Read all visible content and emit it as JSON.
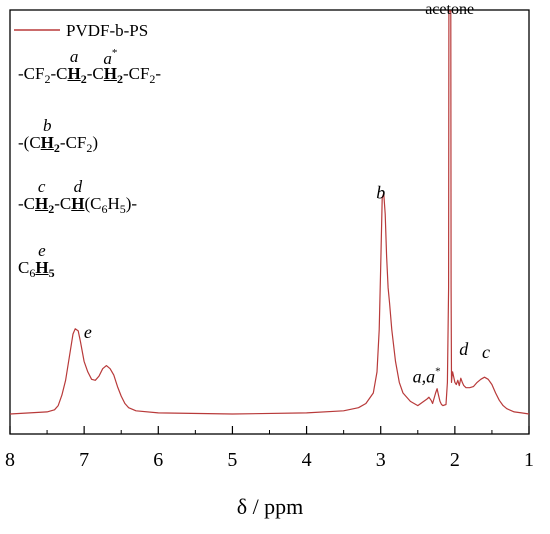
{
  "chart_data": {
    "type": "line",
    "xlabel": "δ / ppm",
    "xlim": [
      8,
      1
    ],
    "x_reversed": true,
    "xticks": [
      "8",
      "7",
      "6",
      "5",
      "4",
      "3",
      "2",
      "1"
    ],
    "grid": false,
    "legend_position": "top-left",
    "colors": {
      "series": "#b83a3a",
      "axes": "#000000"
    },
    "series": [
      {
        "name": "PVDF-b-PS",
        "x": [
          8.0,
          7.5,
          7.4,
          7.35,
          7.3,
          7.25,
          7.2,
          7.15,
          7.12,
          7.08,
          7.05,
          7.0,
          6.95,
          6.9,
          6.85,
          6.8,
          6.75,
          6.7,
          6.65,
          6.6,
          6.55,
          6.5,
          6.45,
          6.4,
          6.3,
          6.0,
          5.0,
          4.0,
          3.5,
          3.3,
          3.2,
          3.1,
          3.05,
          3.02,
          3.0,
          2.98,
          2.96,
          2.94,
          2.92,
          2.9,
          2.88,
          2.85,
          2.8,
          2.75,
          2.7,
          2.6,
          2.5,
          2.42,
          2.38,
          2.35,
          2.32,
          2.3,
          2.26,
          2.24,
          2.22,
          2.2,
          2.18,
          2.16,
          2.12,
          2.1,
          2.085,
          2.08,
          2.075,
          2.07,
          2.065,
          2.06,
          2.055,
          2.05,
          2.045,
          2.04,
          2.03,
          2.0,
          1.98,
          1.96,
          1.94,
          1.92,
          1.9,
          1.88,
          1.85,
          1.8,
          1.75,
          1.7,
          1.65,
          1.6,
          1.55,
          1.5,
          1.45,
          1.4,
          1.35,
          1.3,
          1.2,
          1.1,
          1.0
        ],
        "y": [
          0,
          0.2,
          0.4,
          0.8,
          1.8,
          3.2,
          5.4,
          7.6,
          8.1,
          7.9,
          6.9,
          5.0,
          4.0,
          3.3,
          3.2,
          3.6,
          4.3,
          4.6,
          4.3,
          3.7,
          2.6,
          1.7,
          1.0,
          0.6,
          0.3,
          0.1,
          0,
          0.1,
          0.3,
          0.6,
          1.0,
          2.0,
          4.0,
          8.0,
          14.0,
          20.5,
          21.0,
          19.0,
          15.0,
          12.0,
          10.5,
          8.0,
          5.0,
          3.0,
          2.0,
          1.2,
          0.8,
          1.2,
          1.4,
          1.6,
          1.3,
          1.0,
          2.0,
          2.4,
          1.8,
          1.2,
          0.9,
          0.8,
          0.9,
          3.0,
          12.0,
          40.0,
          40.0,
          40.0,
          40.0,
          40.0,
          40.0,
          12.0,
          3.0,
          3.5,
          4.0,
          3.0,
          2.8,
          3.2,
          2.7,
          3.4,
          3.0,
          2.7,
          2.5,
          2.5,
          2.6,
          3.0,
          3.3,
          3.5,
          3.3,
          2.8,
          2.0,
          1.3,
          0.8,
          0.5,
          0.2,
          0.1,
          0
        ]
      }
    ],
    "peak_labels": [
      {
        "text": "b",
        "x": 3.0,
        "y": 20.5
      },
      {
        "text": "e",
        "x": 6.95,
        "y": 7.2
      },
      {
        "text": "a,a",
        "sup": "*",
        "x": 2.38,
        "y": 3.0
      },
      {
        "text": "d",
        "x": 1.88,
        "y": 5.6
      },
      {
        "text": "c",
        "x": 1.58,
        "y": 5.3
      },
      {
        "text": "acetone",
        "x": 2.4,
        "y": 38.0
      }
    ]
  },
  "legend": {
    "label": "PVDF-b-PS"
  },
  "structures": {
    "l1": {
      "pre": "-CF",
      "sub1": "2",
      "mid1": "-C",
      "h1": "H",
      "hsub1": "2",
      "lab1": "a",
      "mid2": "-C",
      "h2": "H",
      "hsub2": "2",
      "lab2": "a",
      "star": "*",
      "post": "-CF",
      "sub2": "2",
      "end": "-"
    },
    "l2": {
      "pre": "-(C",
      "h": "H",
      "hsub": "2",
      "lab": "b",
      "post": "-CF",
      "sub": "2",
      "end": ")"
    },
    "l3": {
      "pre": "-C",
      "h1": "H",
      "hsub1": "2",
      "lab1": "c",
      "mid": "-C",
      "h2": "H",
      "lab2": "d",
      "post": "(C",
      "sub1": "6",
      "h3": "H",
      "sub2": "5",
      "end": ")-"
    },
    "l4": {
      "pre": "C",
      "sub": "6",
      "h": "H",
      "hsub": "5",
      "lab": "e"
    }
  }
}
